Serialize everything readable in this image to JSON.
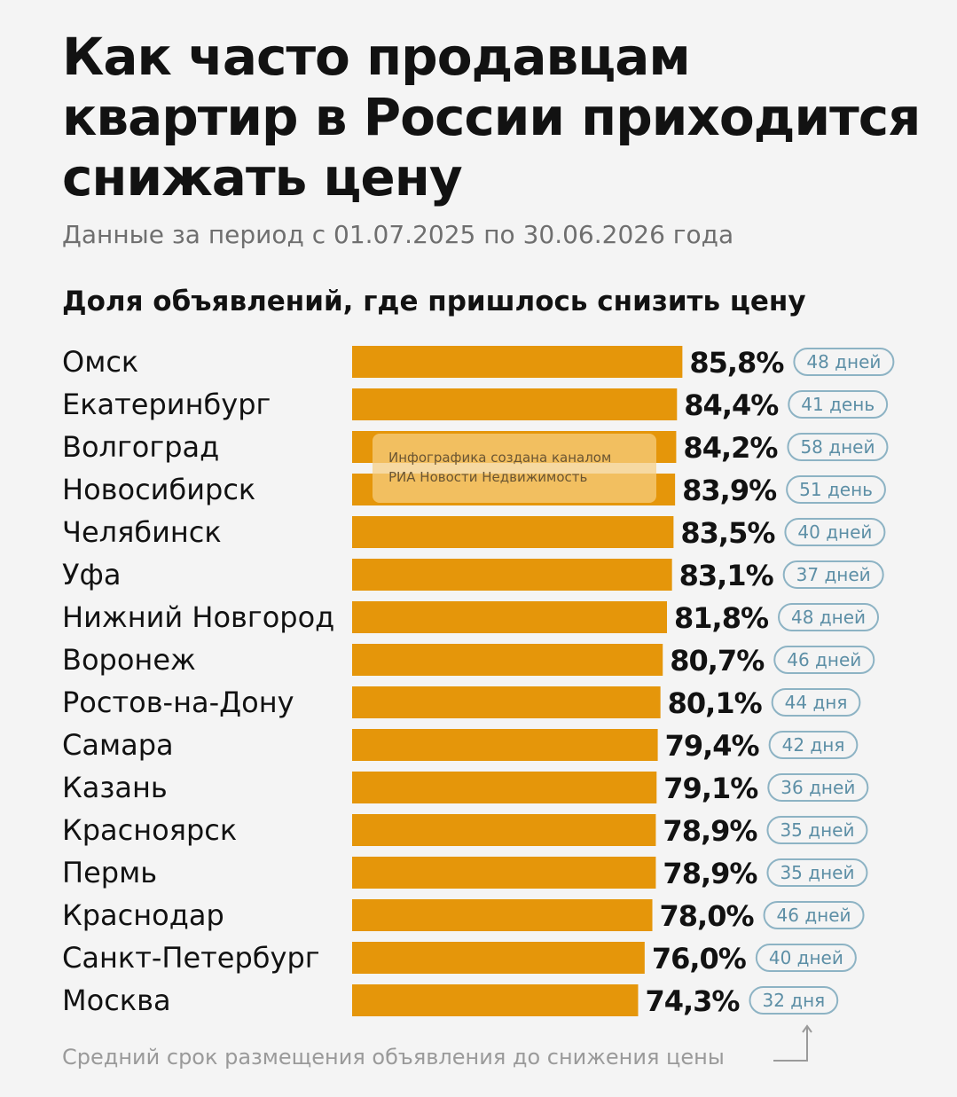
{
  "header": {
    "title": "Как часто продавцам квартир в России приходится снижать цену",
    "subtitle": "Данные за период с 01.07.2025 по 30.06.2026 года"
  },
  "chart_heading": "Доля объявлений, где пришлось снизить цену",
  "watermark": {
    "line1": "Инфографика создана каналом",
    "line2": "РИА Новости Недвижимость"
  },
  "footnote": "Средний срок размещения объявления до снижения цены",
  "colors": {
    "bar": "#e5960a",
    "pill_stroke": "#8db3c4",
    "pill_text": "#5d8fa6"
  },
  "chart_data": {
    "type": "bar",
    "orientation": "horizontal",
    "title": "Доля объявлений, где пришлось снизить цену",
    "categories": [
      "Омск",
      "Екатеринбург",
      "Волгоград",
      "Новосибирск",
      "Челябинск",
      "Уфа",
      "Нижний Новгород",
      "Воронеж",
      "Ростов-на-Дону",
      "Самара",
      "Казань",
      "Красноярск",
      "Пермь",
      "Краснодар",
      "Санкт-Петербург",
      "Москва"
    ],
    "values": [
      85.8,
      84.4,
      84.2,
      83.9,
      83.5,
      83.1,
      81.8,
      80.7,
      80.1,
      79.4,
      79.1,
      78.9,
      78.9,
      78.0,
      76.0,
      74.3
    ],
    "value_labels": [
      "85,8%",
      "84,4%",
      "84,2%",
      "83,9%",
      "83,5%",
      "83,1%",
      "81,8%",
      "80,7%",
      "80,1%",
      "79,4%",
      "79,1%",
      "78,9%",
      "78,9%",
      "78,0%",
      "76,0%",
      "74,3%"
    ],
    "days_labels": [
      "48 дней",
      "41 день",
      "58 дней",
      "51 день",
      "40 дней",
      "37 дней",
      "48 дней",
      "46 дней",
      "44 дня",
      "42 дня",
      "36 дней",
      "35 дней",
      "35 дней",
      "46 дней",
      "40 дней",
      "32 дня"
    ],
    "days": [
      48,
      41,
      58,
      51,
      40,
      37,
      48,
      46,
      44,
      42,
      36,
      35,
      35,
      46,
      40,
      32
    ],
    "xlabel": "",
    "ylabel": "",
    "grid": false,
    "legend": "none"
  }
}
